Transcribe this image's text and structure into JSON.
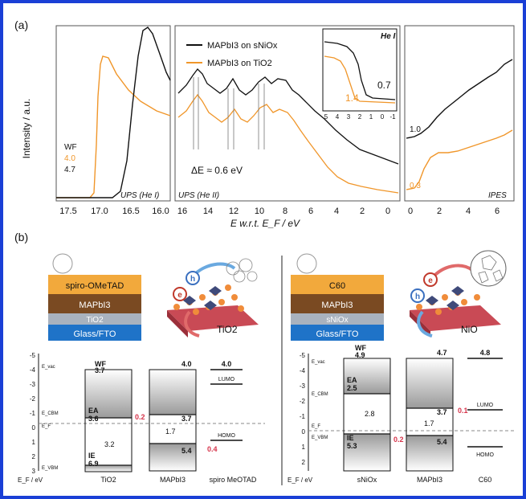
{
  "panel_a": {
    "label": "(a)",
    "ylabel": "Intensity / a.u.",
    "wf": {
      "label": "WF",
      "val1": "4.0",
      "val2": "4.7"
    },
    "ups1": {
      "title": "UPS (He I)",
      "ticks": [
        "17.5",
        "17.0",
        "16.5",
        "16.0"
      ]
    },
    "ups2": {
      "title": "UPS (He II)",
      "ticks": [
        "16",
        "14",
        "12",
        "10",
        "8",
        "6",
        "4",
        "2",
        "0"
      ],
      "legend1": "MAPbI3 on sNiOx",
      "legend2": "MAPbI3 on TiO2",
      "delta": "ΔE ≈ 0.6 eV"
    },
    "inset": {
      "title": "He I",
      "ticks": [
        "5",
        "4",
        "3",
        "2",
        "1",
        "0",
        "-1"
      ],
      "v1": "0.7",
      "v2": "1.4"
    },
    "ipes": {
      "title": "IPES",
      "ticks": [
        "0",
        "2",
        "4",
        "6"
      ],
      "v1": "1.0",
      "v2": "0.3"
    },
    "xlabel": "E w.r.t. E_F / eV"
  },
  "panel_b": {
    "label": "(b)",
    "left": {
      "stack": [
        "spiro-OMeTAD",
        "MAPbI3",
        "TiO2",
        "Glass/FTO"
      ],
      "substrate": "TiO2",
      "yticks": [
        "-5",
        "-4",
        "-3",
        "-2",
        "-1",
        "0",
        "1",
        "2",
        "3"
      ],
      "ylabel": "E_F / eV",
      "vac": "E_vac",
      "ecbm": "E_CBM",
      "ef": "E_F",
      "evbm": "E_VBM",
      "tio2": {
        "wf_label": "WF",
        "wf": "3.7",
        "ea_label": "EA",
        "ea": "3.6",
        "gap": "3.2",
        "ie_label": "IE",
        "ie": "6.9",
        "name": "TiO2"
      },
      "mapbi": {
        "top": "4.0",
        "cb": "3.7",
        "gap": "1.7",
        "vb": "5.4",
        "name": "MAPbI3"
      },
      "spiro": {
        "top": "4.0",
        "lumo": "LUMO",
        "homo": "HOMO",
        "name": "spiro MeOTAD"
      },
      "offset_cb": "0.2",
      "offset_vb": "0.4",
      "h_label": "h",
      "e_label": "e"
    },
    "right": {
      "stack": [
        "C60",
        "MAPbI3",
        "sNiOx",
        "Glass/FTO"
      ],
      "substrate": "NiO",
      "yticks": [
        "-5",
        "-4",
        "-3",
        "-2",
        "-1",
        "0",
        "1",
        "2"
      ],
      "ylabel": "E_F / eV",
      "vac": "E_vac",
      "ecbm": "E_CBM",
      "ef": "E_F",
      "evbm": "E_VBM",
      "nio": {
        "wf_label": "WF",
        "wf": "4.9",
        "ea_label": "EA",
        "ea": "2.5",
        "gap": "2.8",
        "ie_label": "IE",
        "ie": "5.3",
        "name": "sNiOx"
      },
      "mapbi": {
        "top": "4.7",
        "cb": "3.7",
        "gap": "1.7",
        "vb": "5.4",
        "name": "MAPbI3"
      },
      "c60": {
        "top": "4.8",
        "lumo": "LUMO",
        "homo": "HOMO",
        "name": "C60"
      },
      "offset_cb": "0.1",
      "offset_vb": "0.2",
      "h_label": "h",
      "e_label": "e"
    }
  },
  "colors": {
    "frame": "#1a3fd6",
    "black": "#111111",
    "orange": "#f0962a",
    "offset_red": "#d6334a"
  }
}
